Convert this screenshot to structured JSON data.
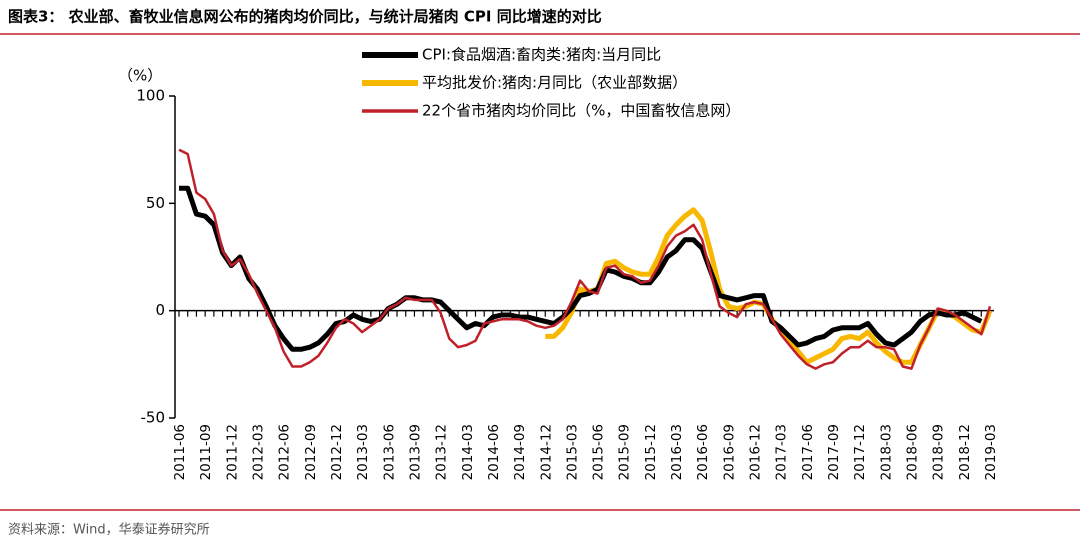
{
  "chart_data": {
    "type": "line",
    "title": "图表3： 农业部、畜牧业信息网公布的猪肉均价同比，与统计局猪肉 CPI 同比增速的对比",
    "y_label": "（%）",
    "source": "资料来源：Wind，华泰证券研究所",
    "categories": [
      "2011-06",
      null,
      null,
      "2011-09",
      null,
      null,
      "2011-12",
      null,
      null,
      "2012-03",
      null,
      null,
      "2012-06",
      null,
      null,
      "2012-09",
      null,
      null,
      "2012-12",
      null,
      null,
      "2013-03",
      null,
      null,
      "2013-06",
      null,
      null,
      "2013-09",
      null,
      null,
      "2013-12",
      null,
      null,
      "2014-03",
      null,
      null,
      "2014-06",
      null,
      null,
      "2014-09",
      null,
      null,
      "2014-12",
      null,
      null,
      "2015-03",
      null,
      null,
      "2015-06",
      null,
      null,
      "2015-09",
      null,
      null,
      "2015-12",
      null,
      null,
      "2016-03",
      null,
      null,
      "2016-06",
      null,
      null,
      "2016-09",
      null,
      null,
      "2016-12",
      null,
      null,
      "2017-03",
      null,
      null,
      "2017-06",
      null,
      null,
      "2017-09",
      null,
      null,
      "2017-12",
      null,
      null,
      "2018-03",
      null,
      null,
      "2018-06",
      null,
      null,
      "2018-09",
      null,
      null,
      "2018-12",
      null,
      null,
      "2019-03"
    ],
    "series": [
      {
        "name": "CPI:食品烟酒:畜肉类:猪肉:当月同比",
        "color": "#000000",
        "width": 5,
        "values": [
          57,
          57,
          45,
          44,
          40,
          27,
          21,
          25,
          15,
          10,
          2,
          -7,
          -13,
          -18,
          -18,
          -17,
          -15,
          -11,
          -6,
          -5,
          -2,
          -4,
          -5,
          -4,
          1,
          3,
          6,
          6,
          5,
          5,
          4,
          0,
          -4,
          -8,
          -6,
          -7,
          -3,
          -2,
          -2,
          -3,
          -3,
          -4,
          -5,
          -6,
          -3,
          1,
          7,
          8,
          10,
          19,
          18,
          16,
          15,
          13,
          13,
          18,
          25,
          28,
          33,
          33,
          29,
          18,
          7,
          6,
          5,
          6,
          7,
          7,
          -5,
          -8,
          -12,
          -16,
          -15,
          -13,
          -12,
          -9,
          -8,
          -8,
          -8,
          -6,
          -11,
          -15,
          -16,
          -13,
          -10,
          -5,
          -2,
          -1,
          -2,
          -2,
          -1,
          -3,
          -5,
          null
        ]
      },
      {
        "name": "平均批发价:猪肉:月同比（农业部数据）",
        "color": "#f9b800",
        "width": 5,
        "values": [
          null,
          null,
          null,
          null,
          null,
          null,
          null,
          null,
          null,
          null,
          null,
          null,
          null,
          null,
          null,
          null,
          null,
          null,
          null,
          null,
          null,
          null,
          null,
          null,
          null,
          null,
          null,
          null,
          null,
          null,
          null,
          null,
          null,
          null,
          null,
          null,
          null,
          null,
          null,
          null,
          null,
          null,
          -12,
          -12,
          -8,
          -1,
          10,
          9,
          10,
          22,
          23,
          20,
          18,
          17,
          17,
          25,
          35,
          40,
          44,
          47,
          42,
          27,
          10,
          2,
          1,
          2,
          4,
          3,
          -4,
          -9,
          -14,
          -19,
          -24,
          -22,
          -20,
          -18,
          -13,
          -12,
          -13,
          -10,
          -15,
          -19,
          -22,
          -24,
          -24,
          -16,
          -8,
          0,
          -1,
          -3,
          -6,
          -9,
          -10,
          0
        ]
      },
      {
        "name": "22个省市猪肉均价同比（%，中国畜牧信息网）",
        "color": "#c0202a",
        "width": 2.5,
        "values": [
          75,
          73,
          55,
          52,
          45,
          28,
          21,
          24,
          17,
          8,
          0,
          -8,
          -19,
          -26,
          -26,
          -24,
          -21,
          -15,
          -8,
          -4,
          -6,
          -10,
          -7,
          -4,
          1,
          3,
          6,
          5,
          5,
          5,
          -1,
          -13,
          -17,
          -16,
          -14,
          -6,
          -5,
          -4,
          -4,
          -4,
          -5,
          -7,
          -8,
          -7,
          -4,
          4,
          14,
          9,
          8,
          20,
          21,
          17,
          16,
          13,
          14,
          21,
          30,
          35,
          37,
          40,
          33,
          17,
          2,
          -1,
          -3,
          3,
          4,
          3,
          -4,
          -11,
          -16,
          -21,
          -25,
          -27,
          -25,
          -24,
          -20,
          -17,
          -17,
          -14,
          -17,
          -17,
          -18,
          -26,
          -27,
          -16,
          -8,
          1,
          0,
          -2,
          -5,
          -8,
          -11,
          2
        ]
      }
    ],
    "draw_order": [
      1,
      0,
      2
    ],
    "ylim": [
      -50,
      100
    ],
    "yticks": [
      -50,
      0,
      50,
      100
    ],
    "grid": false
  }
}
